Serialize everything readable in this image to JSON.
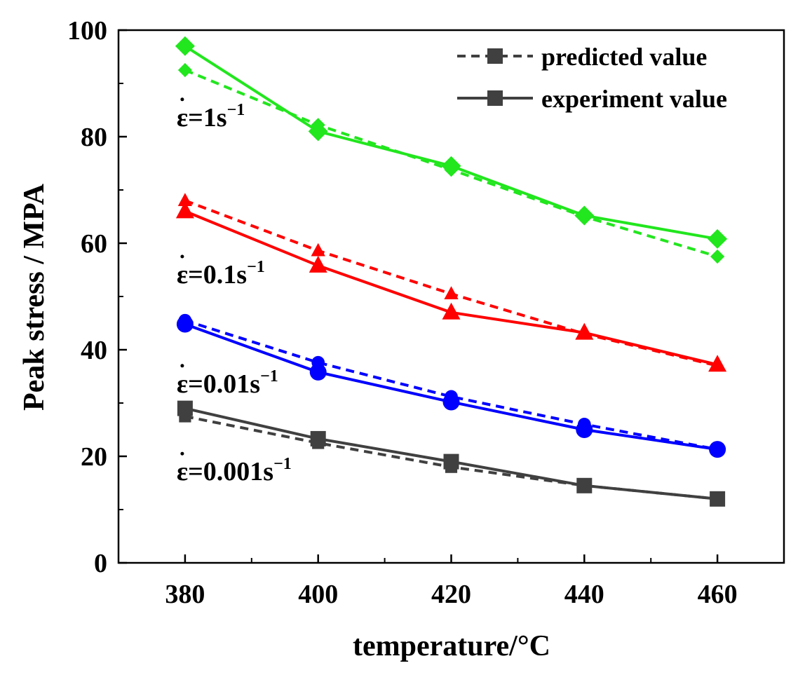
{
  "chart_data": {
    "type": "line",
    "title": "",
    "xlabel": "temperature/°C",
    "ylabel": "Peak stress / MPA",
    "xlim": [
      370,
      470
    ],
    "ylim": [
      0,
      100
    ],
    "xticks": [
      380,
      400,
      420,
      440,
      460
    ],
    "yticks": [
      0,
      20,
      40,
      60,
      80,
      100
    ],
    "grid": false,
    "legend": {
      "location": "top-right",
      "entries": [
        {
          "label": "predicted value",
          "style": "dashed",
          "marker": "square",
          "color": "#404040"
        },
        {
          "label": "experiment value",
          "style": "solid",
          "marker": "square",
          "color": "#404040"
        }
      ]
    },
    "x": [
      380,
      400,
      420,
      440,
      460
    ],
    "groups": [
      {
        "name": "strain rate 1",
        "annotation": {
          "prefix": "ε=1s",
          "sup": "−1",
          "x": 380,
          "y": 82
        },
        "color": "#22e61e",
        "marker": "diamond",
        "experiment": [
          97,
          81,
          74.5,
          65.2,
          60.8
        ],
        "predicted": [
          92.5,
          82.2,
          73.8,
          65,
          57.5
        ]
      },
      {
        "name": "strain rate 0.1",
        "annotation": {
          "prefix": "ε=0.1s",
          "sup": "−1",
          "x": 380,
          "y": 52.5
        },
        "color": "#ff0000",
        "marker": "triangle",
        "experiment": [
          66,
          55.8,
          47,
          43.2,
          37.2
        ],
        "predicted": [
          68,
          58.6,
          50.5,
          43,
          37
        ]
      },
      {
        "name": "strain rate 0.01",
        "annotation": {
          "prefix": "ε=0.01s",
          "sup": "−1",
          "x": 380,
          "y": 32
        },
        "color": "#0000ff",
        "marker": "circle",
        "experiment": [
          44.8,
          35.8,
          30.2,
          25,
          21.3
        ],
        "predicted": [
          45.5,
          37.6,
          31.2,
          26,
          21.3
        ]
      },
      {
        "name": "strain rate 0.001",
        "annotation": {
          "prefix": "ε=0.001s",
          "sup": "−1",
          "x": 380,
          "y": 15.5
        },
        "color": "#404040",
        "marker": "square",
        "experiment": [
          29,
          23.3,
          19,
          14.5,
          12
        ],
        "predicted": [
          27.5,
          22.5,
          18,
          14.5,
          12
        ]
      }
    ]
  }
}
